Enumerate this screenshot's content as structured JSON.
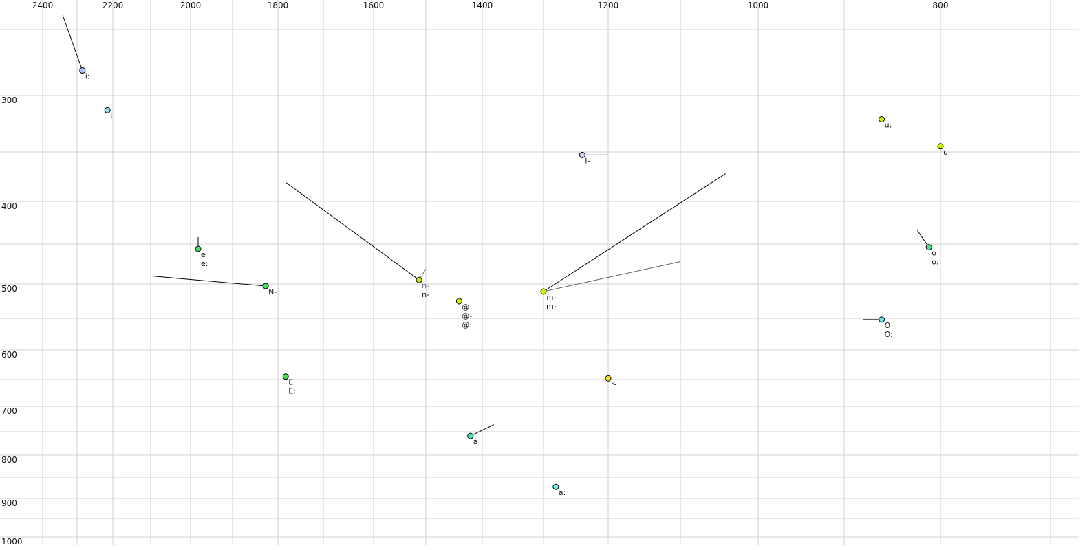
{
  "chart_data": {
    "type": "scatter",
    "title": "",
    "xlabel": "",
    "ylabel": "",
    "x_axis": {
      "reversed": true,
      "position": "top",
      "range": [
        2400,
        700
      ],
      "tick_labels": [
        "2400",
        "2200",
        "2000",
        "1800",
        "1600",
        "1400",
        "1200",
        "1000",
        "800"
      ],
      "gridlines_every": 100
    },
    "y_axis": {
      "reversed": false,
      "position": "left",
      "range": [
        250,
        1000
      ],
      "tick_labels": [
        "300",
        "400",
        "500",
        "600",
        "700",
        "800",
        "900",
        "1000"
      ],
      "gridlines_every": 50
    },
    "grid": true,
    "grid_color": "#d0d0d0",
    "points": [
      {
        "x": 2285,
        "y": 281,
        "color": "#a8c8f8",
        "labels": [
          "i:"
        ],
        "trail": [
          {
            "x": 2342,
            "y": 239,
            "color": "#000000"
          }
        ]
      },
      {
        "x": 2215,
        "y": 313,
        "color": "#88e0f8",
        "labels": [
          "i"
        ],
        "trail": []
      },
      {
        "x": 1982,
        "y": 456,
        "color": "#40e060",
        "labels": [
          "e",
          "e:"
        ],
        "trail": [
          {
            "x": 1982,
            "y": 442,
            "color": "#000000"
          }
        ]
      },
      {
        "x": 1827,
        "y": 503,
        "color": "#40e060",
        "labels": [
          "N-"
        ],
        "trail": [
          {
            "x": 2100,
            "y": 490,
            "color": "#000000"
          }
        ]
      },
      {
        "x": 1513,
        "y": 495,
        "color": "#c0f020",
        "labels": [
          "n-",
          "n-"
        ],
        "gray_first_label": true,
        "trail": [
          {
            "x": 1782,
            "y": 381,
            "color": "#000000"
          },
          {
            "x": 1500,
            "y": 481,
            "color": "#707070"
          }
        ]
      },
      {
        "x": 1441,
        "y": 525,
        "color": "#d8f000",
        "labels": [
          "@",
          "@-",
          "@:"
        ],
        "trail": []
      },
      {
        "x": 1300,
        "y": 511,
        "color": "#d8f000",
        "labels": [
          "m-",
          "m-"
        ],
        "gray_first_label": true,
        "trail": [
          {
            "x": 1042,
            "y": 372,
            "color": "#000000"
          },
          {
            "x": 1100,
            "y": 472,
            "color": "#606060"
          }
        ]
      },
      {
        "x": 1240,
        "y": 353,
        "color": "#d0d0f8",
        "labels": [
          "l-"
        ],
        "trail": [
          {
            "x": 1200,
            "y": 353,
            "color": "#000000"
          }
        ]
      },
      {
        "x": 1783,
        "y": 645,
        "color": "#40e050",
        "labels": [
          "E",
          "E:"
        ],
        "trail": []
      },
      {
        "x": 1200,
        "y": 648,
        "color": "#f0e020",
        "labels": [
          "r-"
        ],
        "trail": []
      },
      {
        "x": 1421,
        "y": 759,
        "color": "#50e8a8",
        "labels": [
          "a"
        ],
        "trail": [
          {
            "x": 1381,
            "y": 736,
            "color": "#000000"
          }
        ]
      },
      {
        "x": 1281,
        "y": 872,
        "color": "#70f0e8",
        "labels": [
          "a:"
        ],
        "trail": []
      },
      {
        "x": 861,
        "y": 321,
        "color": "#c8f000",
        "labels": [
          "u:"
        ],
        "trail": []
      },
      {
        "x": 800,
        "y": 345,
        "color": "#c8f000",
        "labels": [
          "u"
        ],
        "trail": []
      },
      {
        "x": 812,
        "y": 454,
        "color": "#50e090",
        "labels": [
          "o",
          "o:"
        ],
        "trail": [
          {
            "x": 824,
            "y": 434,
            "color": "#000000"
          }
        ]
      },
      {
        "x": 861,
        "y": 552,
        "color": "#60e8e0",
        "labels": [
          "O",
          "O:"
        ],
        "trail": [
          {
            "x": 880,
            "y": 552,
            "color": "#000000"
          }
        ]
      }
    ]
  }
}
